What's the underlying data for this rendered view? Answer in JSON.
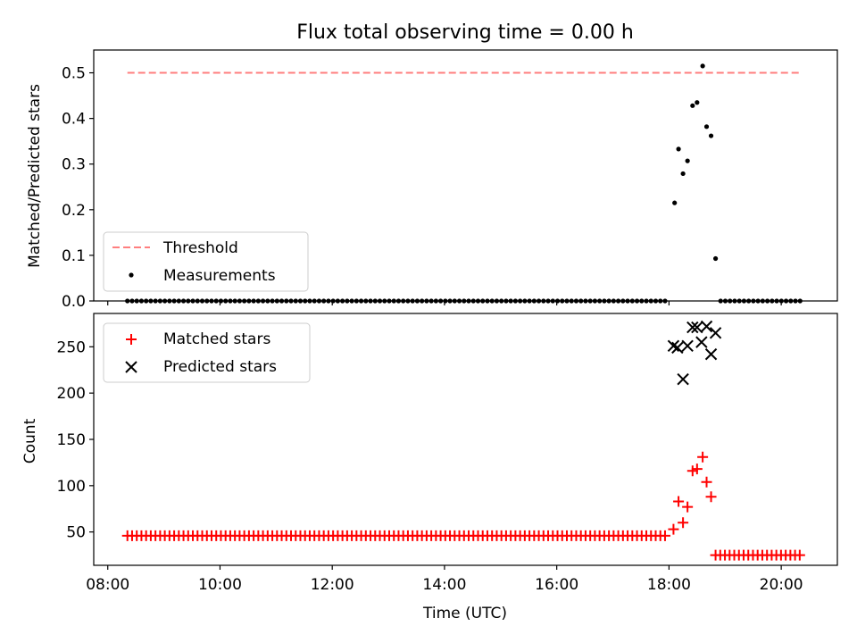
{
  "figure": {
    "title": "Flux total observing time = 0.00 h"
  },
  "chart_data": [
    {
      "type": "scatter",
      "panel": "top",
      "ylabel": "Matched/Predicted stars",
      "xlabel": "",
      "xlim": [
        7.75,
        21.0
      ],
      "ylim": [
        0.0,
        0.55
      ],
      "yticks": [
        0.0,
        0.1,
        0.2,
        0.3,
        0.4,
        0.5
      ],
      "ytick_labels": [
        "0.0",
        "0.1",
        "0.2",
        "0.3",
        "0.4",
        "0.5"
      ],
      "xticks": [
        8,
        10,
        12,
        14,
        16,
        18,
        20
      ],
      "legend_location": "lower left",
      "threshold": {
        "label": "Threshold",
        "value": 0.5,
        "x_start": 8.35,
        "x_end": 20.35,
        "color": "#ff7f7f",
        "style": "dashed"
      },
      "measurements": {
        "label": "Measurements",
        "color": "#000000",
        "zero_range_1": {
          "start": 8.35,
          "end": 18.0,
          "step": 0.0833,
          "value": 0.0
        },
        "points": [
          [
            18.1,
            0.215
          ],
          [
            18.17,
            0.333
          ],
          [
            18.25,
            0.279
          ],
          [
            18.33,
            0.307
          ],
          [
            18.42,
            0.428
          ],
          [
            18.5,
            0.435
          ],
          [
            18.6,
            0.515
          ],
          [
            18.67,
            0.382
          ],
          [
            18.75,
            0.362
          ],
          [
            18.83,
            0.093
          ]
        ],
        "zero_range_2": {
          "start": 18.92,
          "end": 20.35,
          "step": 0.0833,
          "value": 0.0
        }
      }
    },
    {
      "type": "scatter",
      "panel": "bottom",
      "ylabel": "Count",
      "xlabel": "Time (UTC)",
      "xlim": [
        7.75,
        21.0
      ],
      "ylim": [
        14,
        286
      ],
      "yticks": [
        50,
        100,
        150,
        200,
        250
      ],
      "ytick_labels": [
        "50",
        "100",
        "150",
        "200",
        "250"
      ],
      "xticks": [
        8,
        10,
        12,
        14,
        16,
        18,
        20
      ],
      "xtick_labels": [
        "08:00",
        "10:00",
        "12:00",
        "14:00",
        "16:00",
        "18:00",
        "20:00"
      ],
      "legend_location": "upper left",
      "matched": {
        "label": "Matched stars",
        "color": "#ff0000",
        "marker": "plus",
        "flat_range_1": {
          "start": 8.35,
          "end": 18.0,
          "step": 0.0833,
          "value": 46
        },
        "points": [
          [
            18.08,
            53
          ],
          [
            18.17,
            83
          ],
          [
            18.25,
            60
          ],
          [
            18.33,
            77
          ],
          [
            18.42,
            116
          ],
          [
            18.5,
            118
          ],
          [
            18.6,
            131
          ],
          [
            18.67,
            104
          ],
          [
            18.75,
            88
          ]
        ],
        "flat_range_2": {
          "start": 18.83,
          "end": 20.35,
          "step": 0.0833,
          "value": 25
        }
      },
      "predicted": {
        "label": "Predicted stars",
        "color": "#000000",
        "marker": "x",
        "points": [
          [
            18.08,
            251
          ],
          [
            18.15,
            249
          ],
          [
            18.25,
            215
          ],
          [
            18.33,
            251
          ],
          [
            18.42,
            271
          ],
          [
            18.5,
            271
          ],
          [
            18.58,
            255
          ],
          [
            18.67,
            272
          ],
          [
            18.75,
            242
          ],
          [
            18.83,
            265
          ]
        ]
      }
    }
  ]
}
